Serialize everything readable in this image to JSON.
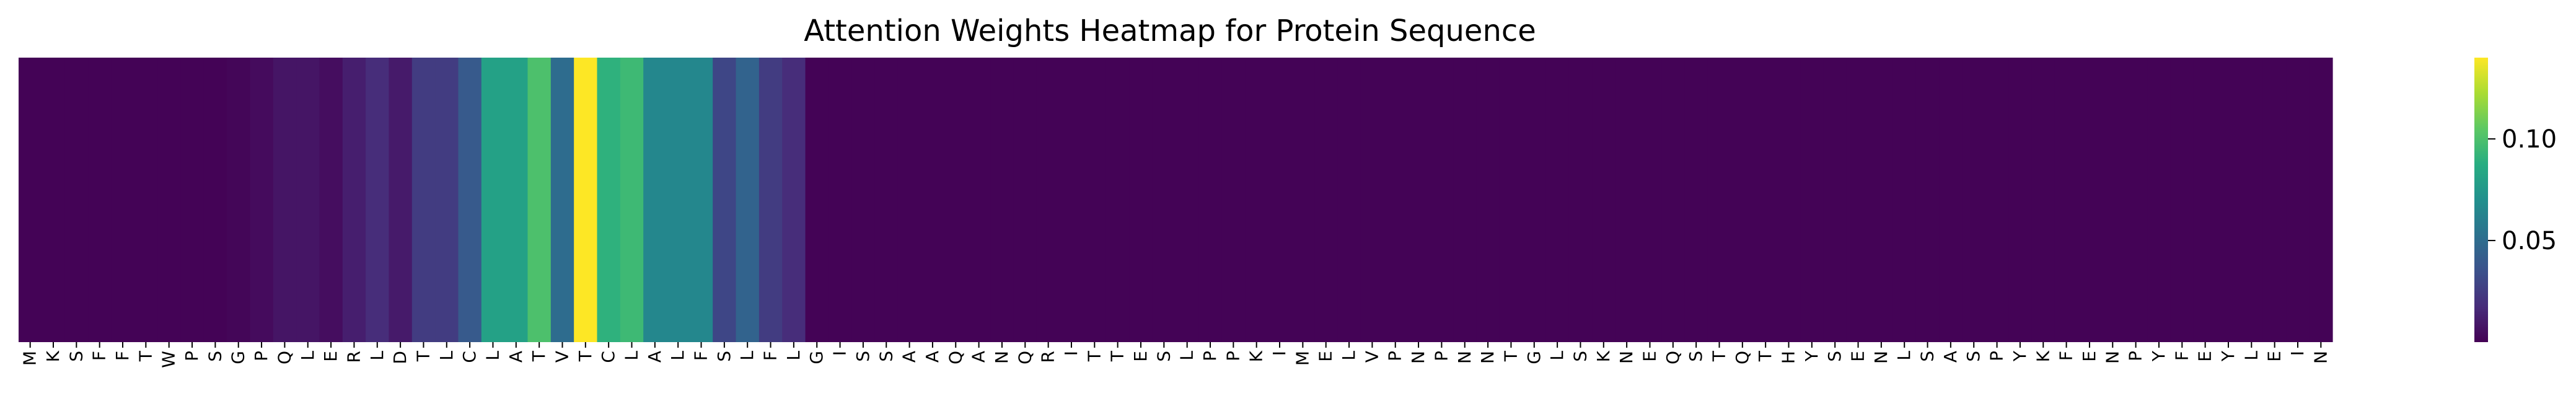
{
  "chart_data": {
    "type": "heatmap",
    "title": "Attention Weights Heatmap for Protein Sequence",
    "xlabel": "",
    "ylabel": "",
    "colormap": "viridis",
    "color_range": [
      0.0,
      0.14
    ],
    "colorbar_ticks": [
      {
        "value": 0.05,
        "label": "0.05"
      },
      {
        "value": 0.1,
        "label": "0.10"
      }
    ],
    "rows": 1,
    "residues": [
      "M",
      "K",
      "S",
      "F",
      "F",
      "T",
      "W",
      "P",
      "S",
      "G",
      "P",
      "Q",
      "L",
      "E",
      "R",
      "L",
      "D",
      "T",
      "L",
      "C",
      "L",
      "A",
      "T",
      "V",
      "T",
      "C",
      "L",
      "A",
      "L",
      "F",
      "S",
      "L",
      "F",
      "L",
      "G",
      "I",
      "S",
      "S",
      "A",
      "A",
      "Q",
      "A",
      "N",
      "Q",
      "R",
      "I",
      "T",
      "T",
      "E",
      "S",
      "L",
      "P",
      "P",
      "K",
      "I",
      "M",
      "E",
      "L",
      "V",
      "P",
      "N",
      "P",
      "N",
      "N",
      "T",
      "G",
      "L",
      "S",
      "K",
      "N",
      "E",
      "Q",
      "S",
      "T",
      "Q",
      "T",
      "H",
      "Y",
      "S",
      "E",
      "N",
      "L",
      "S",
      "A",
      "S",
      "P",
      "Y",
      "K",
      "F",
      "E",
      "N",
      "P",
      "Y",
      "F",
      "E",
      "Y",
      "L",
      "E",
      "I",
      "N"
    ],
    "values": [
      0.001,
      0.001,
      0.001,
      0.001,
      0.001,
      0.001,
      0.001,
      0.001,
      0.001,
      0.002,
      0.004,
      0.008,
      0.008,
      0.005,
      0.012,
      0.018,
      0.01,
      0.025,
      0.025,
      0.04,
      0.08,
      0.08,
      0.1,
      0.05,
      0.14,
      0.09,
      0.095,
      0.065,
      0.065,
      0.065,
      0.03,
      0.045,
      0.025,
      0.018,
      0.001,
      0.001,
      0.001,
      0.001,
      0.001,
      0.001,
      0.001,
      0.001,
      0.001,
      0.001,
      0.001,
      0.001,
      0.001,
      0.001,
      0.001,
      0.001,
      0.001,
      0.001,
      0.001,
      0.001,
      0.001,
      0.001,
      0.001,
      0.001,
      0.001,
      0.001,
      0.001,
      0.001,
      0.001,
      0.001,
      0.001,
      0.001,
      0.001,
      0.001,
      0.001,
      0.001,
      0.001,
      0.001,
      0.001,
      0.001,
      0.001,
      0.001,
      0.001,
      0.001,
      0.001,
      0.001,
      0.001,
      0.001,
      0.001,
      0.001,
      0.001,
      0.001,
      0.001,
      0.001,
      0.001,
      0.001,
      0.001,
      0.001,
      0.001,
      0.001,
      0.001,
      0.001,
      0.001,
      0.001,
      0.001,
      0.001
    ]
  }
}
